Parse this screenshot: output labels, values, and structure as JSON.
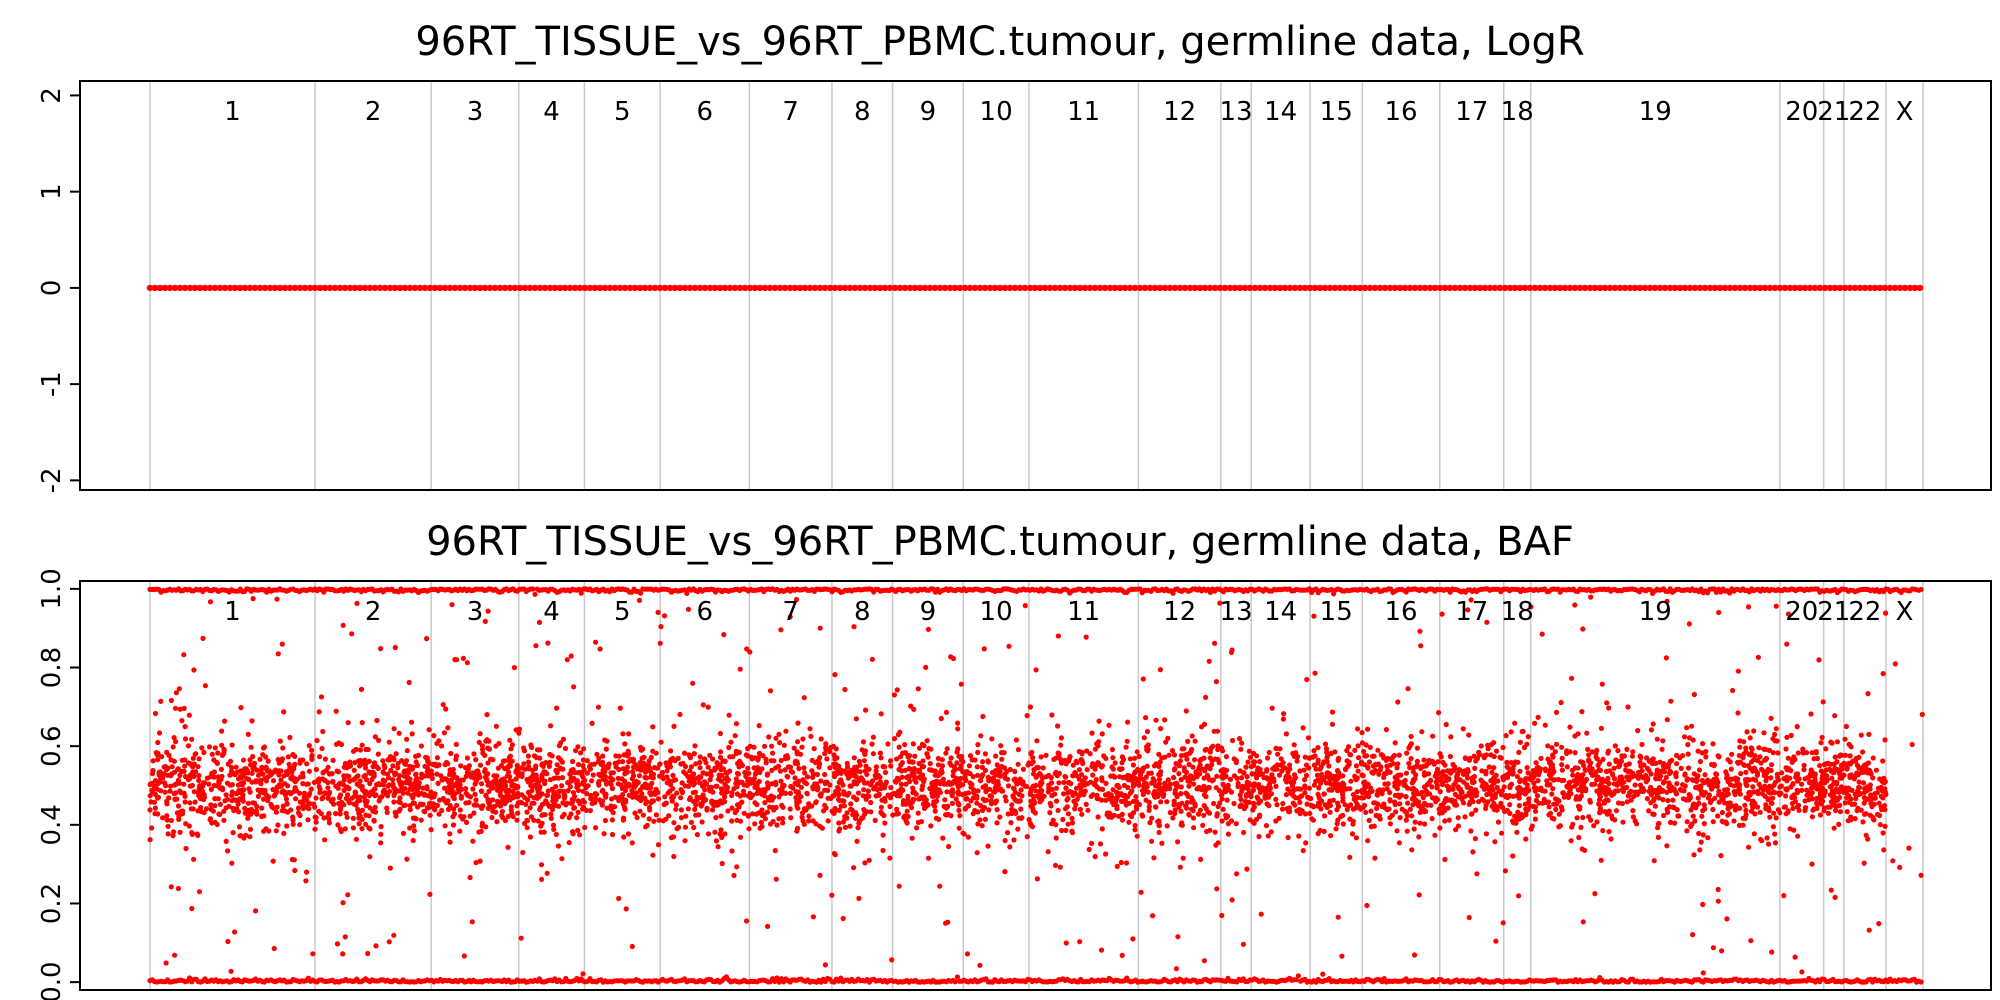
{
  "chart_data": [
    {
      "type": "scatter",
      "title": "96RT_TISSUE_vs_96RT_PBMC.tumour, germline data, LogR",
      "xlabel": "",
      "ylabel": "",
      "ylim": [
        -2.1,
        2.15
      ],
      "yticks": [
        -2,
        -1,
        0,
        1,
        2
      ],
      "ytick_labels": [
        "-2",
        "-1",
        "0",
        "1",
        "2"
      ],
      "grid": false,
      "point_color": "#ff0000",
      "separator_color": "#c8c8c8",
      "chromosomes": [
        "1",
        "2",
        "3",
        "4",
        "5",
        "6",
        "7",
        "8",
        "9",
        "10",
        "11",
        "12",
        "13",
        "14",
        "15",
        "16",
        "17",
        "18",
        "19",
        "20",
        "21",
        "22",
        "X"
      ],
      "chromosome_bounds": [
        0,
        9.8,
        16.7,
        21.9,
        25.8,
        30.3,
        35.6,
        40.5,
        44.1,
        48.3,
        52.2,
        58.7,
        63.6,
        65.4,
        68.9,
        72.0,
        76.6,
        80.4,
        82.0,
        96.8,
        99.4,
        100.6,
        103.1,
        105.3
      ],
      "series": [
        {
          "description": "constant",
          "value": 0
        }
      ]
    },
    {
      "type": "scatter",
      "title": "96RT_TISSUE_vs_96RT_PBMC.tumour, germline data, BAF",
      "xlabel": "",
      "ylabel": "",
      "ylim": [
        -0.02,
        1.02
      ],
      "yticks": [
        0.0,
        0.2,
        0.4,
        0.6,
        0.8,
        1.0
      ],
      "ytick_labels": [
        "0.0",
        "0.2",
        "0.4",
        "0.6",
        "0.8",
        "1.0"
      ],
      "grid": false,
      "point_color": "#ff0000",
      "separator_color": "#c8c8c8",
      "chromosomes": [
        "1",
        "2",
        "3",
        "4",
        "5",
        "6",
        "7",
        "8",
        "9",
        "10",
        "11",
        "12",
        "13",
        "14",
        "15",
        "16",
        "17",
        "18",
        "19",
        "20",
        "21",
        "22",
        "X"
      ],
      "bands": [
        {
          "center": 1.0,
          "spread": 0.006
        },
        {
          "center": 0.5,
          "spread": 0.06
        },
        {
          "center": 0.0,
          "spread": 0.006
        }
      ]
    }
  ]
}
